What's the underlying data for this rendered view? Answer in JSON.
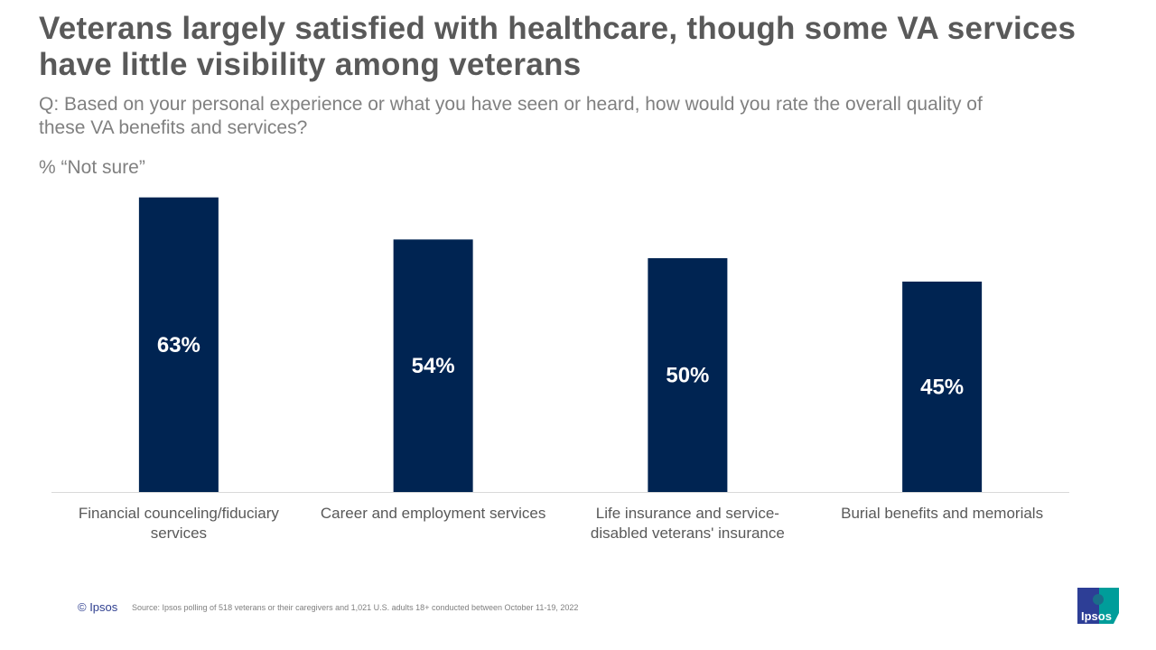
{
  "title": "Veterans largely satisfied with healthcare, though some VA services have little visibility among veterans",
  "question": "Q: Based on your personal experience or what you have seen or heard, how would you rate the overall quality of these VA benefits and services?",
  "measure": "% “Not sure”",
  "footer": {
    "copyright": "© Ipsos",
    "source": "Source: Ipsos polling of 518 veterans or their caregivers and 1,021 U.S. adults 18+ conducted between October 11-19, 2022"
  },
  "logo": {
    "text": "Ipsos",
    "colors": [
      "#2d3e96",
      "#009d9a"
    ]
  },
  "chart_data": {
    "type": "bar",
    "categories": [
      "Financial counceling/fiduciary services",
      "Career and employment services",
      "Life insurance and service-disabled veterans' insurance",
      "Burial benefits and memorials"
    ],
    "values": [
      63,
      54,
      50,
      45
    ],
    "data_labels": [
      "63%",
      "54%",
      "50%",
      "45%"
    ],
    "bar_color": "#002452",
    "grid": false,
    "title": "",
    "xlabel": "",
    "ylabel": ""
  }
}
